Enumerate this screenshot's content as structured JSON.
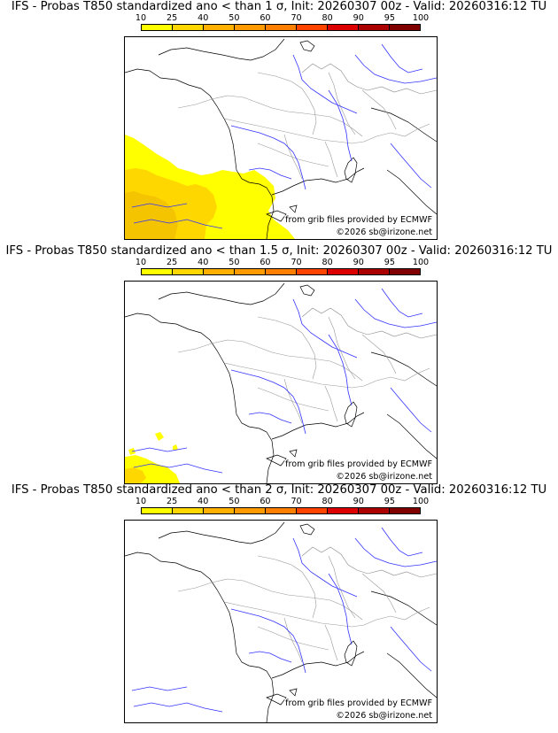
{
  "scale": {
    "ticks": [
      "10",
      "25",
      "40",
      "50",
      "60",
      "70",
      "80",
      "90",
      "95",
      "100"
    ],
    "colors": [
      "#ffff00",
      "#ffd700",
      "#ffb000",
      "#ff9a00",
      "#ff7f00",
      "#ff4400",
      "#dd0000",
      "#aa0000",
      "#800000",
      "#500000"
    ]
  },
  "panels": [
    {
      "title": "IFS - Probas T850  standardized ano < than 1 σ, Init: 20260307 00z - Valid: 20260316:12 TU",
      "source": "from grib files provided by ECMWF",
      "copyright": "©2026 sb@irizone.net",
      "field": "large"
    },
    {
      "title": "IFS - Probas T850  standardized ano < than 1.5 σ, Init: 20260307 00z - Valid: 20260316:12 TU",
      "source": "from grib files provided by ECMWF",
      "copyright": "©2026 sb@irizone.net",
      "field": "small"
    },
    {
      "title": "IFS - Probas T850  standardized ano < than 2 σ, Init: 20260307 00z - Valid: 20260316:12 TU",
      "source": "from grib files provided by ECMWF",
      "copyright": "©2026 sb@irizone.net",
      "field": "none"
    }
  ]
}
